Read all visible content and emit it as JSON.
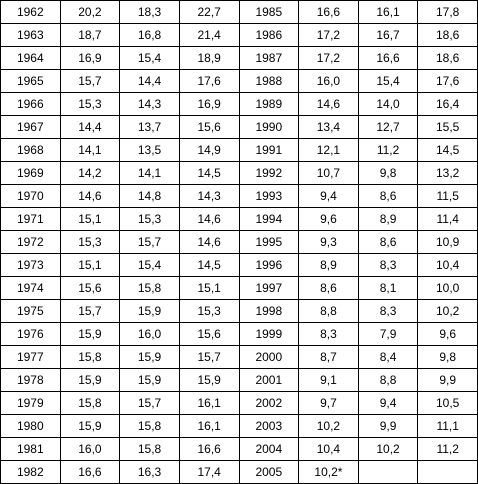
{
  "table": {
    "rows": [
      [
        "1962",
        "20,2",
        "18,3",
        "22,7",
        "1985",
        "16,6",
        "16,1",
        "17,8"
      ],
      [
        "1963",
        "18,7",
        "16,8",
        "21,4",
        "1986",
        "17,2",
        "16,7",
        "18,6"
      ],
      [
        "1964",
        "16,9",
        "15,4",
        "18,9",
        "1987",
        "17,2",
        "16,6",
        "18,6"
      ],
      [
        "1965",
        "15,7",
        "14,4",
        "17,6",
        "1988",
        "16,0",
        "15,4",
        "17,6"
      ],
      [
        "1966",
        "15,3",
        "14,3",
        "16,9",
        "1989",
        "14,6",
        "14,0",
        "16,4"
      ],
      [
        "1967",
        "14,4",
        "13,7",
        "15,6",
        "1990",
        "13,4",
        "12,7",
        "15,5"
      ],
      [
        "1968",
        "14,1",
        "13,5",
        "14,9",
        "1991",
        "12,1",
        "11,2",
        "14,5"
      ],
      [
        "1969",
        "14,2",
        "14,1",
        "14,5",
        "1992",
        "10,7",
        "9,8",
        "13,2"
      ],
      [
        "1970",
        "14,6",
        "14,8",
        "14,3",
        "1993",
        "9,4",
        "8,6",
        "11,5"
      ],
      [
        "1971",
        "15,1",
        "15,3",
        "14,6",
        "1994",
        "9,6",
        "8,9",
        "11,4"
      ],
      [
        "1972",
        "15,3",
        "15,7",
        "14,6",
        "1995",
        "9,3",
        "8,6",
        "10,9"
      ],
      [
        "1973",
        "15,1",
        "15,4",
        "14,5",
        "1996",
        "8,9",
        "8,3",
        "10,4"
      ],
      [
        "1974",
        "15,6",
        "15,8",
        "15,1",
        "1997",
        "8,6",
        "8,1",
        "10,0"
      ],
      [
        "1975",
        "15,7",
        "15,9",
        "15,3",
        "1998",
        "8,8",
        "8,3",
        "10,2"
      ],
      [
        "1976",
        "15,9",
        "16,0",
        "15,6",
        "1999",
        "8,3",
        "7,9",
        "9,6"
      ],
      [
        "1977",
        "15,8",
        "15,9",
        "15,7",
        "2000",
        "8,7",
        "8,4",
        "9,8"
      ],
      [
        "1978",
        "15,9",
        "15,9",
        "15,9",
        "2001",
        "9,1",
        "8,8",
        "9,9"
      ],
      [
        "1979",
        "15,8",
        "15,7",
        "16,1",
        "2002",
        "9,7",
        "9,4",
        "10,5"
      ],
      [
        "1980",
        "15,9",
        "15,8",
        "16,1",
        "2003",
        "10,2",
        "9,9",
        "11,1"
      ],
      [
        "1981",
        "16,0",
        "15,8",
        "16,6",
        "2004",
        "10,4",
        "10,2",
        "11,2"
      ],
      [
        "1982",
        "16,6",
        "16,3",
        "17,4",
        "2005",
        "10,2*"
      ]
    ]
  }
}
